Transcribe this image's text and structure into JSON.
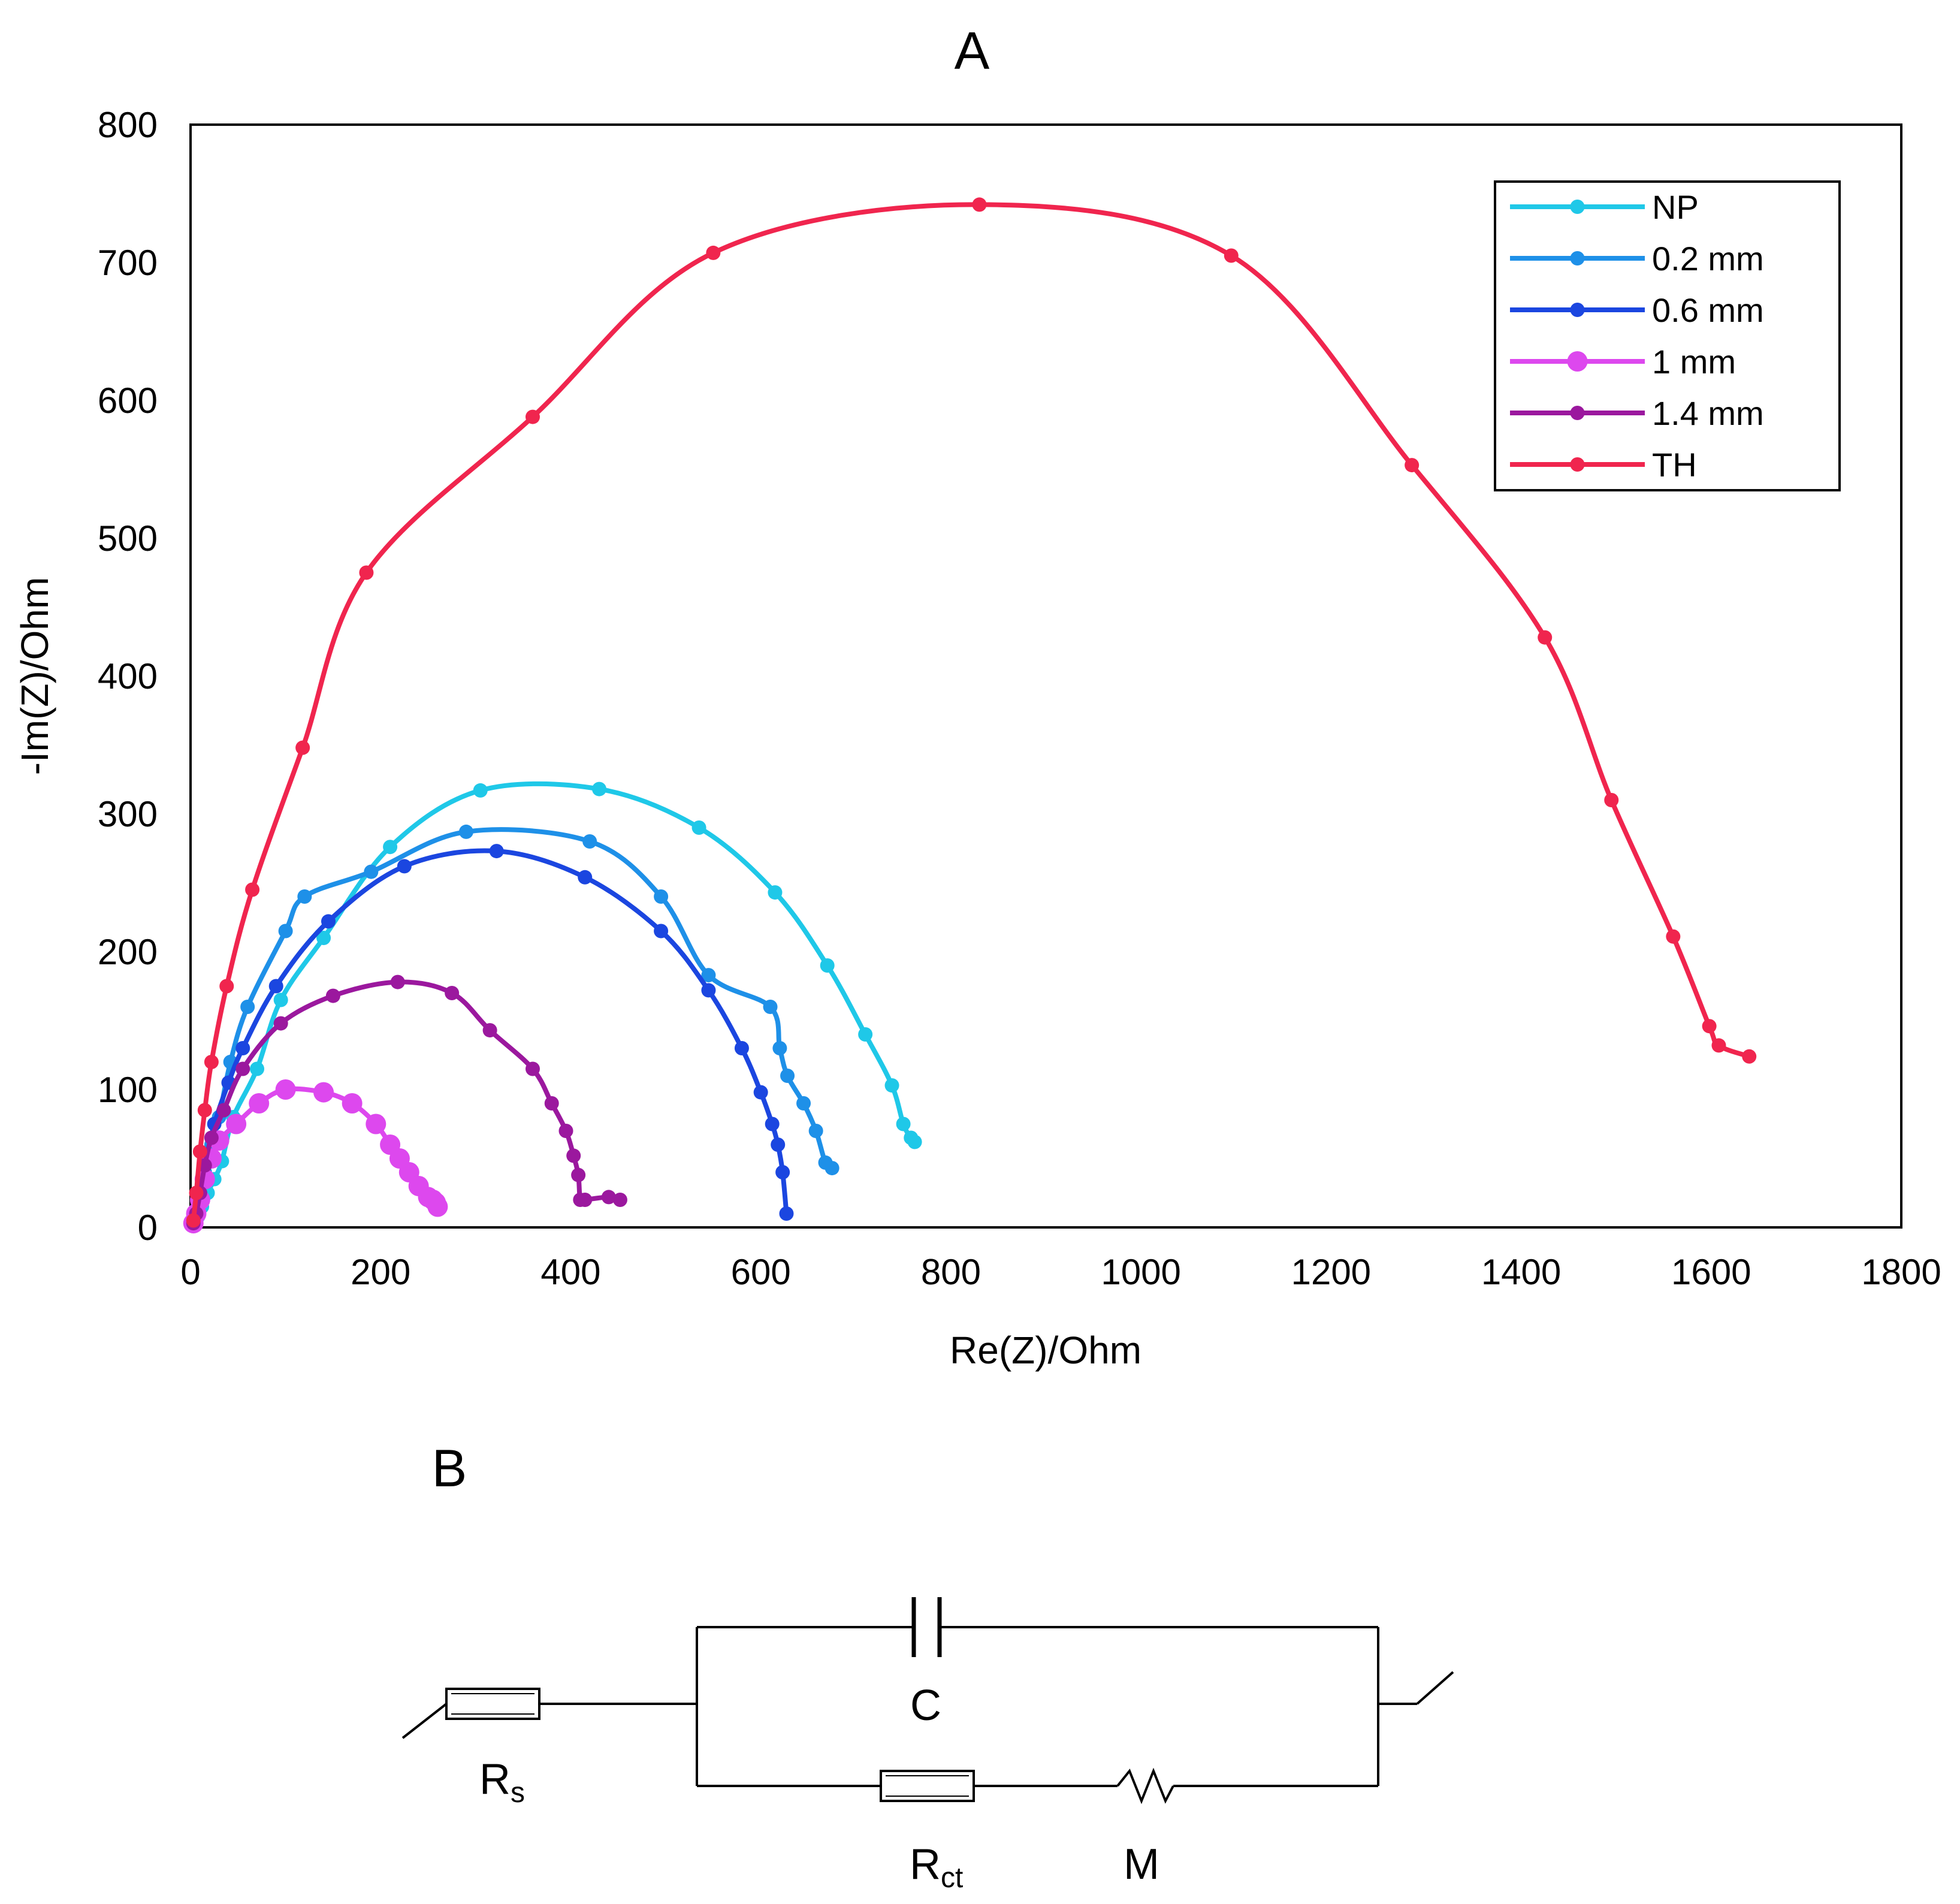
{
  "chart_data": {
    "type": "scatter",
    "title": "A",
    "xlabel": "Re(Z)/Ohm",
    "ylabel": "-Im(Z)/Ohm",
    "xlim": [
      0,
      1800
    ],
    "ylim": [
      0,
      800
    ],
    "xticks": [
      0,
      200,
      400,
      600,
      800,
      1000,
      1200,
      1400,
      1600,
      1800
    ],
    "yticks": [
      0,
      100,
      200,
      300,
      400,
      500,
      600,
      700,
      800
    ],
    "grid": false,
    "legend_position": "top-right",
    "series": [
      {
        "name": "NP",
        "color": "#1fc8e8",
        "x": [
          3,
          8,
          12,
          18,
          25,
          33,
          45,
          70,
          95,
          140,
          210,
          305,
          430,
          535,
          615,
          670,
          710,
          738,
          750,
          758,
          762
        ],
        "y": [
          3,
          8,
          15,
          25,
          35,
          48,
          80,
          115,
          165,
          210,
          276,
          317,
          318,
          290,
          243,
          190,
          140,
          103,
          75,
          65,
          62
        ]
      },
      {
        "name": "0.2 mm",
        "color": "#1e90e8",
        "x": [
          3,
          6,
          10,
          15,
          22,
          30,
          42,
          60,
          100,
          120,
          190,
          290,
          420,
          495,
          545,
          610,
          620,
          628,
          645,
          658,
          668,
          675
        ],
        "y": [
          3,
          10,
          22,
          40,
          60,
          80,
          120,
          160,
          215,
          240,
          258,
          287,
          280,
          240,
          183,
          160,
          130,
          110,
          90,
          70,
          47,
          43
        ]
      },
      {
        "name": "0.6 mm",
        "color": "#1b46e0",
        "x": [
          3,
          6,
          10,
          15,
          25,
          40,
          55,
          90,
          145,
          225,
          322,
          415,
          495,
          545,
          580,
          600,
          612,
          618,
          623,
          627
        ],
        "y": [
          3,
          12,
          25,
          45,
          75,
          105,
          130,
          175,
          222,
          262,
          273,
          254,
          215,
          172,
          130,
          98,
          75,
          60,
          40,
          10
        ]
      },
      {
        "name": "1 mm",
        "color": "#dd48ee",
        "x": [
          3,
          6,
          10,
          15,
          22,
          30,
          48,
          72,
          100,
          140,
          170,
          195,
          210,
          220,
          230,
          240,
          250,
          255,
          258,
          260
        ],
        "y": [
          3,
          10,
          20,
          35,
          50,
          63,
          75,
          90,
          100,
          98,
          90,
          75,
          60,
          50,
          40,
          30,
          22,
          20,
          18,
          15
        ]
      },
      {
        "name": "1.4 mm",
        "color": "#9b189e",
        "x": [
          3,
          6,
          10,
          15,
          22,
          35,
          55,
          95,
          150,
          218,
          275,
          315,
          360,
          380,
          395,
          403,
          408,
          410,
          415,
          440,
          452
        ],
        "y": [
          3,
          10,
          25,
          45,
          65,
          85,
          115,
          148,
          168,
          178,
          170,
          143,
          115,
          90,
          70,
          52,
          38,
          20,
          20,
          22,
          20
        ]
      },
      {
        "name": "TH",
        "color": "#f0254e",
        "x": [
          3,
          6,
          10,
          15,
          22,
          38,
          65,
          118,
          185,
          360,
          550,
          830,
          1095,
          1285,
          1425,
          1495,
          1560,
          1598,
          1608,
          1640
        ],
        "y": [
          5,
          25,
          55,
          85,
          120,
          175,
          245,
          348,
          475,
          588,
          707,
          742,
          705,
          553,
          428,
          310,
          211,
          146,
          132,
          124
        ]
      }
    ]
  },
  "panel_b": {
    "label": "B",
    "components": {
      "rs": {
        "main": "R",
        "sub": "s"
      },
      "c": {
        "main": "C"
      },
      "rct": {
        "main": "R",
        "sub": "ct"
      },
      "m": {
        "main": "M"
      }
    }
  }
}
